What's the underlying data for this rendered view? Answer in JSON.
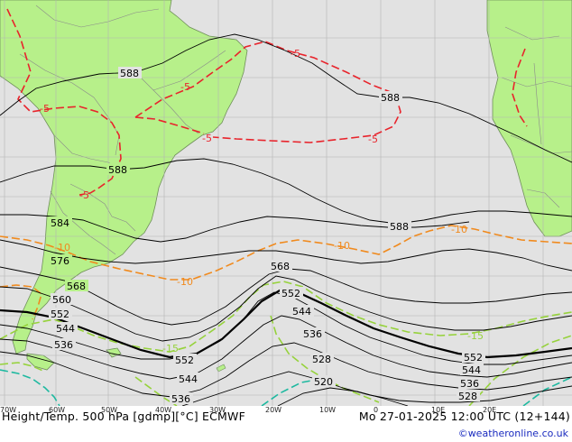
{
  "caption": {
    "title": "Height/Temp. 500 hPa [gdmp][°C] ECMWF",
    "valid_time": "Mo 27-01-2025 12:00 UTC (12+144)",
    "credit": "©weatheronline.co.uk"
  },
  "longitude_labels": [
    "70W",
    "60W",
    "50W",
    "40W",
    "30W",
    "20W",
    "10W",
    "0",
    "10E",
    "20E"
  ],
  "height_labels": {
    "h588_a": "588",
    "h588_b": "588",
    "h588_c": "588",
    "h588_d": "588",
    "h584": "584",
    "h576": "576",
    "h568_a": "568",
    "h568_b": "568",
    "h560": "560",
    "h552_a": "552",
    "h552_b": "552",
    "h552_c": "552",
    "h552_d": "552",
    "h544_a": "544",
    "h544_b": "544",
    "h544_c": "544",
    "h544_d": "544",
    "h536_a": "536",
    "h536_b": "536",
    "h536_c": "536",
    "h536_d": "536",
    "h528_a": "528",
    "h528_b": "528",
    "h520": "520"
  },
  "temp_labels": {
    "t5_a": "-5",
    "t5_b": "-5",
    "t5_c": "-5",
    "t5_d": "-5",
    "t5_e": "-5",
    "t5_f": "-5",
    "t10_a": "-10",
    "t10_b": "-10",
    "t10_c": "-10",
    "t10_d": "-10",
    "t15_a": "-15",
    "t15_b": "-15"
  },
  "colors": {
    "ocean": "#e2e2e2",
    "land": "#b7f08a",
    "border": "#8a8a8a",
    "grid": "#b4b4b4",
    "height_contour": "#000000",
    "temp_minus5": "#e8242c",
    "temp_minus10": "#f08a1e",
    "temp_minus15": "#96d23c",
    "temp_minus20": "#1eb9a0"
  }
}
